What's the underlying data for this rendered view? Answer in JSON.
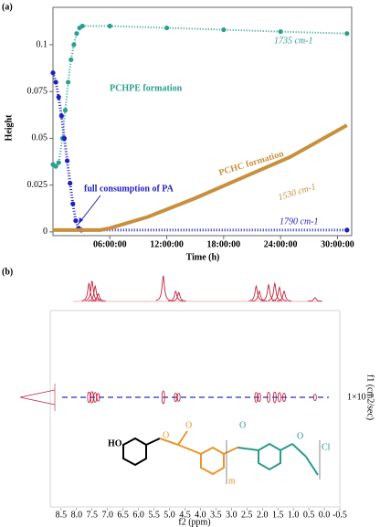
{
  "panel_a_label": "(a)",
  "panel_b_label": "(b)",
  "chart_data": [
    {
      "type": "line",
      "ylabel": "Height",
      "xlabel": "Time (h)",
      "xlim": [
        0,
        31.5
      ],
      "ylim": [
        -0.002,
        0.12
      ],
      "xticks": [
        {
          "value": 6,
          "label": "06:00:00"
        },
        {
          "value": 12,
          "label": "12:00:00"
        },
        {
          "value": 18,
          "label": "18:00:00"
        },
        {
          "value": 24,
          "label": "24:00:00"
        },
        {
          "value": 30,
          "label": "30:00:00"
        }
      ],
      "yticks": [
        0,
        0.025,
        0.05,
        0.075,
        0.1
      ],
      "annotations": [
        "PCHPE formation",
        "PCHC formation",
        "full consumption of PA"
      ],
      "series": [
        {
          "name": "1735 cm-1",
          "color": "#2aa08c",
          "markers": true,
          "width": 2,
          "x": [
            0,
            0.3,
            0.6,
            1,
            1.3,
            1.6,
            1.9,
            2.2,
            2.5,
            2.8,
            3.1,
            6,
            12,
            18,
            24,
            31
          ],
          "values": [
            0.036,
            0.035,
            0.037,
            0.05,
            0.065,
            0.08,
            0.092,
            0.1,
            0.106,
            0.109,
            0.11,
            0.11,
            0.109,
            0.108,
            0.107,
            0.106
          ]
        },
        {
          "name": "1790 cm-1",
          "color": "#1f1fc0",
          "markers": true,
          "width": 3,
          "x": [
            0,
            0.3,
            0.6,
            0.9,
            1.2,
            1.5,
            1.8,
            2.1,
            2.4,
            2.7,
            3,
            31
          ],
          "values": [
            0.085,
            0.08,
            0.072,
            0.062,
            0.05,
            0.038,
            0.026,
            0.015,
            0.006,
            0.002,
            0.001,
            0.001
          ]
        },
        {
          "name": "1530 cm-1",
          "color": "#c8903c",
          "markers": false,
          "width": 4,
          "x": [
            0,
            5,
            6,
            10,
            15,
            20,
            25,
            31
          ],
          "values": [
            0.001,
            0.001,
            0.002,
            0.008,
            0.018,
            0.029,
            0.04,
            0.057
          ]
        }
      ]
    },
    {
      "type": "nmr",
      "xlabel": "f2 (ppm)",
      "ylabel": "f1 (cm2/sec)",
      "f1_tick": "1×10⁻⁹",
      "xlim": [
        8.85,
        -0.5
      ],
      "xticks": [
        8.5,
        {
          "value": 8,
          "label": "8.0"
        },
        7.5,
        {
          "value": 7,
          "label": "7.0"
        },
        6.5,
        {
          "value": 6,
          "label": "6.0"
        },
        5.5,
        {
          "value": 5,
          "label": "5.0"
        },
        4.5,
        {
          "value": 4,
          "label": "4.0"
        },
        3.5,
        {
          "value": 3,
          "label": "3.0"
        },
        2.5,
        {
          "value": 2,
          "label": "2.0"
        },
        1.5,
        {
          "value": 1,
          "label": "1.0"
        },
        0.5,
        {
          "value": 0,
          "label": "0.0"
        },
        -0.5
      ],
      "color": "#c0203a",
      "cross_color": "#2030c0",
      "peaks": {
        "x": [
          7.6,
          7.5,
          7.4,
          7.3,
          5.2,
          4.8,
          4.7,
          2.2,
          2.1,
          1.8,
          1.6,
          1.45,
          1.3,
          0.3
        ],
        "values": [
          0.7,
          0.8,
          0.6,
          0.3,
          1.0,
          0.4,
          0.35,
          0.6,
          0.4,
          0.65,
          0.7,
          0.55,
          0.4,
          0.15
        ]
      },
      "structure_labels": [
        "HO",
        "O",
        "O",
        "O",
        "O",
        "m",
        "Cl"
      ]
    }
  ]
}
